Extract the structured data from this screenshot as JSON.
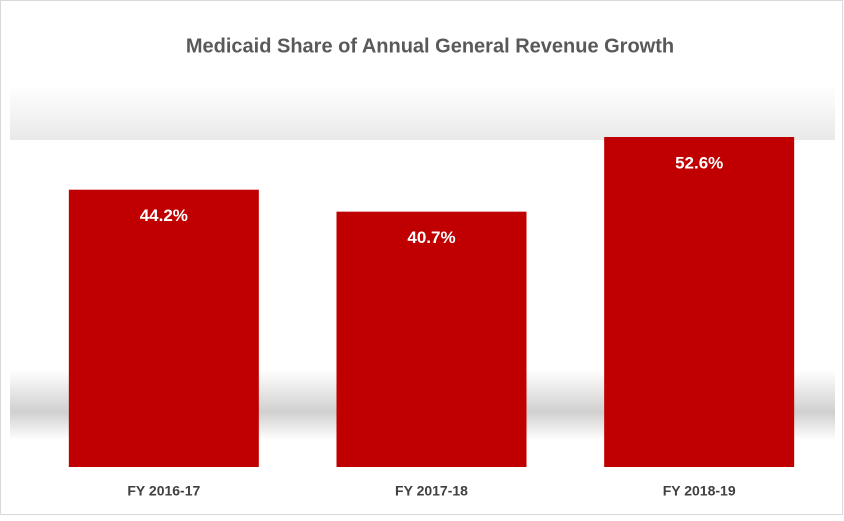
{
  "chart_data": {
    "type": "bar",
    "title": "Medicaid Share of Annual General Revenue Growth",
    "categories": [
      "FY 2016-17",
      "FY 2017-18",
      "FY 2018-19"
    ],
    "values": [
      44.2,
      40.7,
      52.6
    ],
    "value_labels": [
      "44.2%",
      "40.7%",
      "52.6%"
    ],
    "color": "#c00000"
  }
}
